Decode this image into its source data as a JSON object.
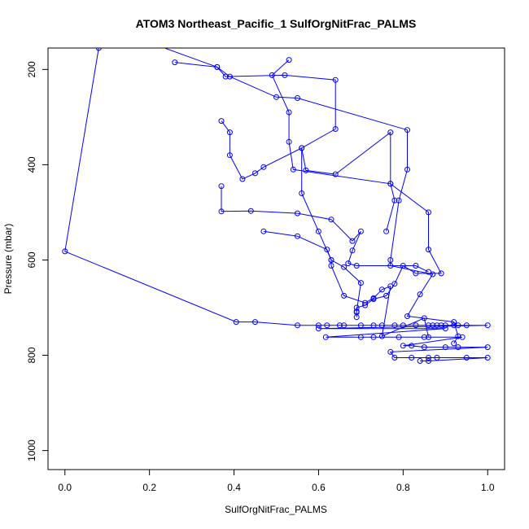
{
  "chart_data": {
    "type": "line",
    "title": "ATOM3 Northeast_Pacific_1 SulfOrgNitFrac_PALMS",
    "xlabel": "SulfOrgNitFrac_PALMS",
    "ylabel": "Pressure (mbar)",
    "xlim": [
      -0.04,
      1.04
    ],
    "ylim": [
      1040,
      155
    ],
    "y_reversed": true,
    "grid": false,
    "marker": "open-circle",
    "color": "#0000ff",
    "x_ticks": [
      0.0,
      0.2,
      0.4,
      0.6,
      0.8,
      1.0
    ],
    "x_tick_labels": [
      "0.0",
      "0.2",
      "0.4",
      "0.6",
      "0.8",
      "1.0"
    ],
    "y_ticks": [
      200,
      400,
      600,
      800,
      1000
    ],
    "y_tick_labels": [
      "200",
      "400",
      "600",
      "800",
      "1000"
    ],
    "series": [
      {
        "values": [
          [
            0.08,
            155
          ],
          [
            0.0,
            582
          ],
          [
            0.405,
            730
          ],
          [
            0.45,
            730
          ],
          [
            0.55,
            737
          ],
          [
            0.6,
            737
          ],
          [
            0.62,
            737
          ],
          [
            0.65,
            737
          ],
          [
            0.66,
            737
          ],
          [
            0.7,
            737
          ],
          [
            0.73,
            737
          ],
          [
            0.75,
            737
          ],
          [
            0.78,
            737
          ],
          [
            0.8,
            737
          ],
          [
            0.83,
            737
          ],
          [
            0.86,
            737
          ],
          [
            0.87,
            737
          ],
          [
            0.88,
            737
          ],
          [
            0.89,
            737
          ],
          [
            0.9,
            737
          ],
          [
            0.92,
            737
          ],
          [
            0.93,
            737
          ],
          [
            0.95,
            737
          ],
          [
            1.0,
            737
          ],
          [
            0.6,
            744
          ],
          [
            0.9,
            744
          ],
          [
            0.617,
            762
          ],
          [
            0.7,
            762
          ],
          [
            0.73,
            762
          ],
          [
            0.79,
            762
          ],
          [
            0.85,
            762
          ],
          [
            0.94,
            762
          ],
          [
            0.8,
            780
          ],
          [
            0.82,
            780
          ],
          [
            0.85,
            783
          ],
          [
            0.9,
            783
          ],
          [
            0.93,
            783
          ],
          [
            1.0,
            783
          ],
          [
            0.77,
            793
          ],
          [
            0.78,
            805
          ],
          [
            0.82,
            805
          ],
          [
            0.86,
            805
          ],
          [
            0.88,
            805
          ],
          [
            0.95,
            805
          ],
          [
            1.0,
            805
          ],
          [
            0.86,
            812
          ],
          [
            0.84,
            812
          ]
        ]
      },
      {
        "values": [
          [
            0.26,
            185
          ],
          [
            0.36,
            195
          ],
          [
            0.39,
            215
          ],
          [
            0.5,
            258
          ],
          [
            0.55,
            260
          ],
          [
            0.81,
            327
          ],
          [
            0.81,
            410
          ],
          [
            0.79,
            475
          ],
          [
            0.77,
            600
          ],
          [
            0.77,
            612
          ],
          [
            0.87,
            630
          ],
          [
            0.84,
            672
          ],
          [
            0.81,
            718
          ],
          [
            0.92,
            730
          ],
          [
            0.93,
            760
          ],
          [
            0.92,
            775
          ]
        ]
      },
      {
        "values": [
          [
            0.22,
            150
          ],
          [
            0.36,
            195
          ],
          [
            0.38,
            215
          ],
          [
            0.52,
            212
          ],
          [
            0.64,
            222
          ],
          [
            0.64,
            325
          ],
          [
            0.56,
            365
          ],
          [
            0.56,
            460
          ],
          [
            0.6,
            540
          ],
          [
            0.63,
            600
          ],
          [
            0.66,
            615
          ],
          [
            0.7,
            648
          ],
          [
            0.69,
            708
          ],
          [
            0.69,
            720
          ]
        ]
      },
      {
        "values": [
          [
            0.53,
            180
          ],
          [
            0.49,
            212
          ],
          [
            0.53,
            290
          ],
          [
            0.53,
            352
          ],
          [
            0.54,
            410
          ],
          [
            0.77,
            440
          ],
          [
            0.86,
            500
          ],
          [
            0.86,
            578
          ],
          [
            0.89,
            628
          ],
          [
            0.83,
            628
          ],
          [
            0.8,
            612
          ],
          [
            0.78,
            650
          ],
          [
            0.76,
            675
          ],
          [
            0.73,
            682
          ],
          [
            0.71,
            695
          ],
          [
            0.69,
            700
          ],
          [
            0.69,
            710
          ]
        ]
      },
      {
        "values": [
          [
            0.37,
            308
          ],
          [
            0.39,
            332
          ],
          [
            0.39,
            380
          ],
          [
            0.42,
            430
          ],
          [
            0.45,
            418
          ],
          [
            0.47,
            405
          ],
          [
            0.56,
            365
          ],
          [
            0.57,
            412
          ],
          [
            0.64,
            420
          ],
          [
            0.77,
            332
          ],
          [
            0.77,
            440
          ],
          [
            0.78,
            475
          ],
          [
            0.76,
            540
          ]
        ]
      },
      {
        "values": [
          [
            0.37,
            445
          ],
          [
            0.37,
            498
          ],
          [
            0.44,
            497
          ],
          [
            0.55,
            502
          ],
          [
            0.63,
            515
          ],
          [
            0.68,
            560
          ],
          [
            0.7,
            540
          ],
          [
            0.68,
            580
          ],
          [
            0.67,
            607
          ],
          [
            0.69,
            612
          ],
          [
            0.83,
            612
          ],
          [
            0.86,
            625
          ]
        ]
      },
      {
        "values": [
          [
            0.47,
            540
          ],
          [
            0.55,
            550
          ],
          [
            0.62,
            578
          ],
          [
            0.63,
            600
          ],
          [
            0.63,
            612
          ],
          [
            0.66,
            675
          ],
          [
            0.71,
            690
          ],
          [
            0.73,
            680
          ],
          [
            0.75,
            662
          ],
          [
            0.77,
            655
          ],
          [
            0.75,
            760
          ],
          [
            0.85,
            722
          ],
          [
            0.86,
            762
          ]
        ]
      }
    ]
  }
}
